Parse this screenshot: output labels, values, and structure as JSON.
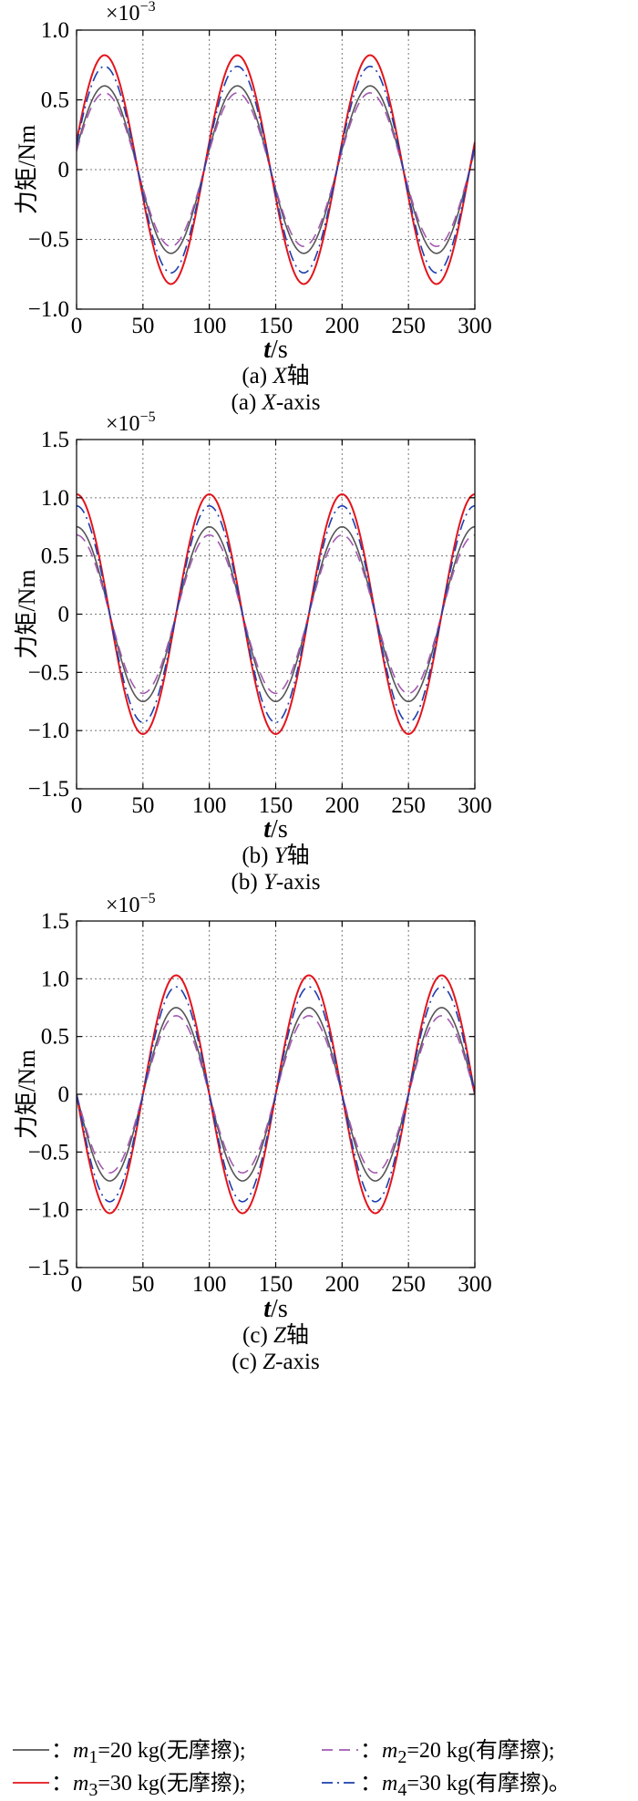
{
  "chart_data": [
    {
      "type": "line",
      "panel": "a",
      "multiplier": {
        "base": "×10",
        "exp": "−3"
      },
      "ylabel": "力矩/Nm",
      "xlabel": {
        "italic": "t",
        "rest": "/s"
      },
      "caption_cn": {
        "prefix": "(a) ",
        "italic": "X",
        "suffix": "轴"
      },
      "caption_en": {
        "prefix": "(a) ",
        "italic": "X",
        "suffix": "-axis"
      },
      "xlim": [
        0,
        300
      ],
      "ylim": [
        -1.0,
        1.0
      ],
      "xticks": [
        "0",
        "50",
        "100",
        "150",
        "200",
        "250",
        "300"
      ],
      "yticks": [
        "−1.0",
        "−0.5",
        "0",
        "0.5",
        "1.0"
      ],
      "ytick_values": [
        -1.0,
        -0.5,
        0,
        0.5,
        1.0
      ],
      "period": 100,
      "phase_deg": 14,
      "series": [
        {
          "name": "m1",
          "amplitude": 0.6
        },
        {
          "name": "m2",
          "amplitude": 0.55
        },
        {
          "name": "m3",
          "amplitude": 0.82
        },
        {
          "name": "m4",
          "amplitude": 0.74
        }
      ],
      "grid": true
    },
    {
      "type": "line",
      "panel": "b",
      "multiplier": {
        "base": "×10",
        "exp": "−5"
      },
      "ylabel": "力矩/Nm",
      "xlabel": {
        "italic": "t",
        "rest": "/s"
      },
      "caption_cn": {
        "prefix": "(b) ",
        "italic": "Y",
        "suffix": "轴"
      },
      "caption_en": {
        "prefix": "(b) ",
        "italic": "Y",
        "suffix": "-axis"
      },
      "xlim": [
        0,
        300
      ],
      "ylim": [
        -1.5,
        1.5
      ],
      "xticks": [
        "0",
        "50",
        "100",
        "150",
        "200",
        "250",
        "300"
      ],
      "yticks": [
        "−1.5",
        "−1.0",
        "−0.5",
        "0",
        "0.5",
        "1.0",
        "1.5"
      ],
      "ytick_values": [
        -1.5,
        -1.0,
        -0.5,
        0,
        0.5,
        1.0,
        1.5
      ],
      "period": 100,
      "phase_deg": 90,
      "series": [
        {
          "name": "m1",
          "amplitude": 0.75
        },
        {
          "name": "m2",
          "amplitude": 0.68
        },
        {
          "name": "m3",
          "amplitude": 1.03
        },
        {
          "name": "m4",
          "amplitude": 0.93
        }
      ],
      "grid": true
    },
    {
      "type": "line",
      "panel": "c",
      "multiplier": {
        "base": "×10",
        "exp": "−5"
      },
      "ylabel": "力矩/Nm",
      "xlabel": {
        "italic": "t",
        "rest": "/s"
      },
      "caption_cn": {
        "prefix": "(c) ",
        "italic": "Z",
        "suffix": "轴"
      },
      "caption_en": {
        "prefix": "(c) ",
        "italic": "Z",
        "suffix": "-axis"
      },
      "xlim": [
        0,
        300
      ],
      "ylim": [
        -1.5,
        1.5
      ],
      "xticks": [
        "0",
        "50",
        "100",
        "150",
        "200",
        "250",
        "300"
      ],
      "yticks": [
        "−1.5",
        "−1.0",
        "−0.5",
        "0",
        "0.5",
        "1.0",
        "1.5"
      ],
      "ytick_values": [
        -1.5,
        -1.0,
        -0.5,
        0,
        0.5,
        1.0,
        1.5
      ],
      "period": 100,
      "phase_deg": 180,
      "series": [
        {
          "name": "m1",
          "amplitude": 0.75
        },
        {
          "name": "m2",
          "amplitude": 0.68
        },
        {
          "name": "m3",
          "amplitude": 1.03
        },
        {
          "name": "m4",
          "amplitude": 0.93
        }
      ],
      "grid": true
    }
  ],
  "series_styles": {
    "m1": {
      "color": "#555555",
      "dash": ""
    },
    "m2": {
      "color": "#a35ab0",
      "dash": "12,7"
    },
    "m3": {
      "color": "#e3141c",
      "dash": ""
    },
    "m4": {
      "color": "#1d3fae",
      "dash": "12,5,2,5"
    }
  },
  "legend": [
    {
      "key": "m1",
      "pre": "：",
      "var": "m",
      "sub": "1",
      "text": "=20 kg(无摩擦);"
    },
    {
      "key": "m2",
      "pre": "：",
      "var": "m",
      "sub": "2",
      "text": "=20 kg(有摩擦);"
    },
    {
      "key": "m3",
      "pre": "：",
      "var": "m",
      "sub": "3",
      "text": "=30 kg(无摩擦);"
    },
    {
      "key": "m4",
      "pre": "：",
      "var": "m",
      "sub": "4",
      "text": "=30 kg(有摩擦)。"
    }
  ]
}
